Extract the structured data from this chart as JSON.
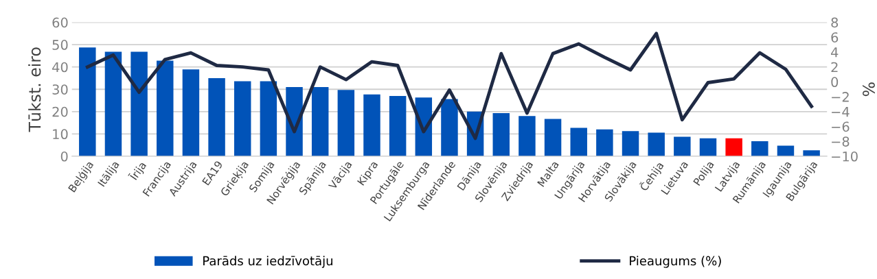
{
  "chart_data": {
    "type": "bar",
    "categories": [
      "Beļģija",
      "Itālija",
      "Īrija",
      "Francija",
      "Austrija",
      "EA19",
      "Grieķija",
      "Somija",
      "Norvēģija",
      "Spānija",
      "Vācija",
      "Kipra",
      "Portugāle",
      "Luksemburga",
      "Nīderlande",
      "Dānija",
      "Slovēnija",
      "Zviedrija",
      "Malta",
      "Ungārija",
      "Horvātija",
      "Slovākija",
      "Čehija",
      "Lietuva",
      "Polija",
      "Latvija",
      "Rumānija",
      "Igaunija",
      "Bulgārija"
    ],
    "series": [
      {
        "name": "Parāds uz iedzīvotāju",
        "color": "#0153b8",
        "colors": [
          "#0153b8",
          "#0153b8",
          "#0153b8",
          "#0153b8",
          "#0153b8",
          "#0153b8",
          "#0153b8",
          "#0153b8",
          "#0153b8",
          "#0153b8",
          "#0153b8",
          "#0153b8",
          "#0153b8",
          "#0153b8",
          "#0153b8",
          "#0153b8",
          "#0153b8",
          "#0153b8",
          "#0153b8",
          "#0153b8",
          "#0153b8",
          "#0153b8",
          "#0153b8",
          "#0153b8",
          "#0153b8",
          "#ff0000",
          "#0153b8",
          "#0153b8",
          "#0153b8"
        ],
        "values": [
          48.7,
          46.8,
          46.8,
          42.8,
          38.9,
          35,
          33.6,
          33.6,
          31,
          31,
          29.7,
          27.7,
          27,
          26.3,
          25.6,
          20,
          19.3,
          18,
          16.7,
          12.7,
          12,
          11.3,
          10.6,
          8.7,
          8,
          8,
          6.7,
          4.7,
          2.7
        ]
      },
      {
        "name": "Pieaugums (%)",
        "type": "line",
        "axis": "y2",
        "color": "#1f2a44",
        "values": [
          2.0,
          3.6,
          -1.4,
          3.0,
          3.9,
          2.2,
          2.0,
          1.6,
          -6.7,
          2.0,
          0.3,
          2.7,
          2.2,
          -6.7,
          -1.1,
          -7.6,
          3.8,
          -4.2,
          3.8,
          5.1,
          3.3,
          1.6,
          6.5,
          -5.1,
          -0.1,
          0.4,
          3.9,
          1.7,
          -3.3
        ]
      }
    ],
    "ylabel": "Tūkst. eiro",
    "y2label": "%",
    "ylim": [
      0,
      60
    ],
    "yticks": [
      0,
      10,
      20,
      30,
      40,
      50,
      60
    ],
    "y2lim": [
      -10,
      8
    ],
    "y2ticks": [
      -10,
      -8,
      -6,
      -4,
      -2,
      0,
      2,
      4,
      6,
      8
    ],
    "grid": "y",
    "legend": "bottom",
    "marker": "none",
    "line_style": "solid"
  }
}
